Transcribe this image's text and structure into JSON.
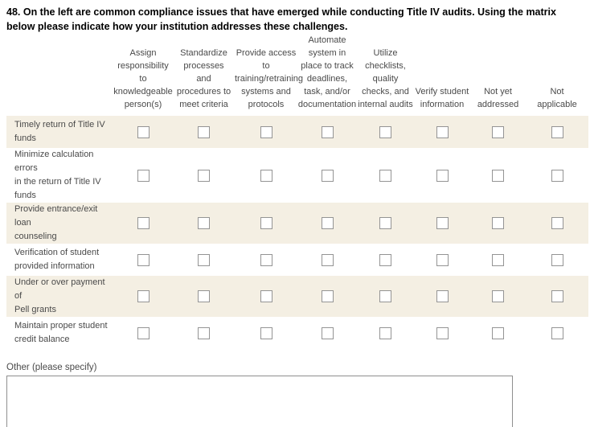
{
  "question": {
    "title": "48. On the left are common compliance issues that have emerged while conducting Title IV audits. Using the matrix below please indicate how your institution addresses these challenges."
  },
  "matrix": {
    "column_headers": [
      "Assign\nresponsibility to\nknowledgeable\nperson(s)",
      "Standardize\nprocesses\nand\nprocedures to\nmeet criteria",
      "Provide access\nto\ntraining/retraining\nsystems and\nprotocols",
      "Automate\nsystem in\nplace to track\ndeadlines,\ntask, and/or\ndocumentation",
      "Utilize\nchecklists,\nquality\nchecks, and\ninternal audits",
      "Verify student\ninformation",
      "Not yet\naddressed",
      "Not\napplicable"
    ],
    "rows": [
      {
        "label": "Timely return of Title IV\nfunds",
        "checked": [
          false,
          false,
          false,
          false,
          false,
          false,
          false,
          false
        ]
      },
      {
        "label": "Minimize calculation errors\nin the return of Title IV\nfunds",
        "checked": [
          false,
          false,
          false,
          false,
          false,
          false,
          false,
          false
        ]
      },
      {
        "label": "Provide entrance/exit loan\ncounseling",
        "checked": [
          false,
          false,
          false,
          false,
          false,
          false,
          false,
          false
        ]
      },
      {
        "label": "Verification of student\nprovided information",
        "checked": [
          false,
          false,
          false,
          false,
          false,
          false,
          false,
          false
        ]
      },
      {
        "label": "Under or over payment of\nPell grants",
        "checked": [
          false,
          false,
          false,
          false,
          false,
          false,
          false,
          false
        ]
      },
      {
        "label": "Maintain proper student\ncredit balance",
        "checked": [
          false,
          false,
          false,
          false,
          false,
          false,
          false,
          false
        ]
      }
    ]
  },
  "other": {
    "label": "Other (please specify)",
    "value": ""
  },
  "colors": {
    "row_band": "#f4efe3",
    "checkbox_border": "#949494",
    "textarea_border": "#8f8f8f",
    "body_text": "#4a4a4a",
    "title_text": "#000000"
  }
}
